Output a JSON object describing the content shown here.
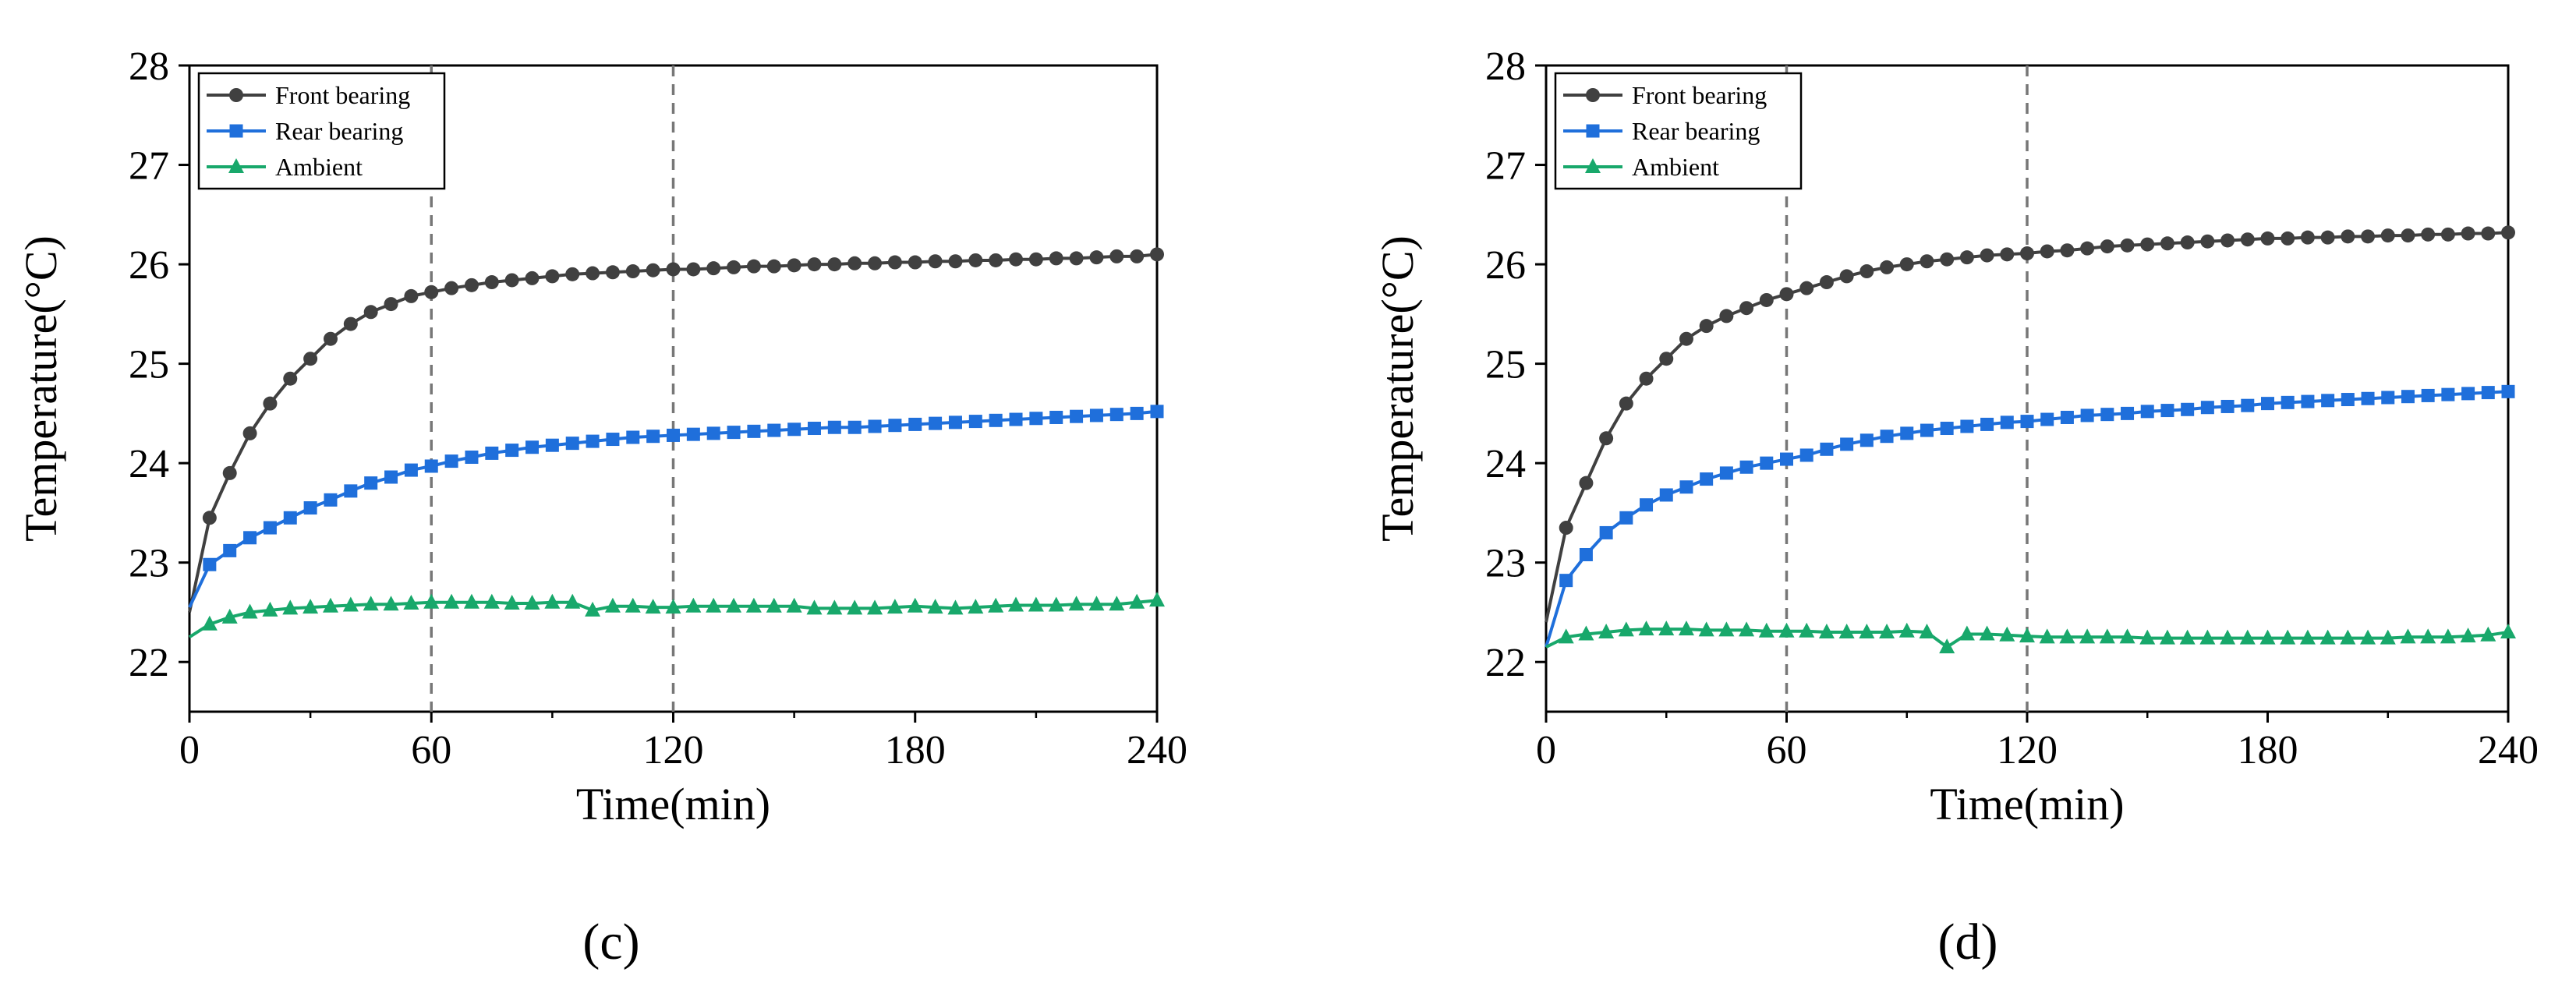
{
  "chart_data": [
    {
      "type": "line",
      "panel_label": "(c)",
      "xlabel": "Time(min)",
      "ylabel": "Temperature(°C)",
      "xlim": [
        0,
        240
      ],
      "ylim": [
        21.5,
        28
      ],
      "xticks": [
        0,
        60,
        120,
        180,
        240
      ],
      "yticks": [
        22,
        23,
        24,
        25,
        26,
        27,
        28
      ],
      "vlines": [
        60,
        120
      ],
      "legend_position": "top-left",
      "x": [
        0,
        5,
        10,
        15,
        20,
        25,
        30,
        35,
        40,
        45,
        50,
        55,
        60,
        65,
        70,
        75,
        80,
        85,
        90,
        95,
        100,
        105,
        110,
        115,
        120,
        125,
        130,
        135,
        140,
        145,
        150,
        155,
        160,
        165,
        170,
        175,
        180,
        185,
        190,
        195,
        200,
        205,
        210,
        215,
        220,
        225,
        230,
        235,
        240
      ],
      "series": [
        {
          "name": "Front bearing",
          "color": "#404040",
          "marker": "circle",
          "values": [
            22.5,
            23.45,
            23.9,
            24.3,
            24.6,
            24.85,
            25.05,
            25.25,
            25.4,
            25.52,
            25.6,
            25.68,
            25.72,
            25.76,
            25.79,
            25.82,
            25.84,
            25.86,
            25.88,
            25.9,
            25.91,
            25.92,
            25.93,
            25.94,
            25.95,
            25.95,
            25.96,
            25.97,
            25.98,
            25.98,
            25.99,
            26.0,
            26.0,
            26.01,
            26.01,
            26.02,
            26.02,
            26.03,
            26.03,
            26.04,
            26.04,
            26.05,
            26.05,
            26.06,
            26.06,
            26.07,
            26.08,
            26.08,
            26.1
          ]
        },
        {
          "name": "Rear bearing",
          "color": "#1f6fdb",
          "marker": "square",
          "values": [
            22.55,
            22.98,
            23.12,
            23.25,
            23.35,
            23.45,
            23.55,
            23.63,
            23.72,
            23.8,
            23.86,
            23.93,
            23.97,
            24.02,
            24.06,
            24.1,
            24.13,
            24.16,
            24.18,
            24.2,
            24.22,
            24.24,
            24.26,
            24.27,
            24.28,
            24.29,
            24.3,
            24.31,
            24.32,
            24.33,
            24.34,
            24.35,
            24.36,
            24.36,
            24.37,
            24.38,
            24.39,
            24.4,
            24.41,
            24.42,
            24.43,
            24.44,
            24.45,
            24.46,
            24.47,
            24.48,
            24.49,
            24.5,
            24.52
          ]
        },
        {
          "name": "Ambient",
          "color": "#18a86b",
          "marker": "triangle",
          "values": [
            22.25,
            22.38,
            22.45,
            22.5,
            22.52,
            22.54,
            22.55,
            22.56,
            22.57,
            22.58,
            22.58,
            22.59,
            22.6,
            22.6,
            22.6,
            22.6,
            22.59,
            22.59,
            22.6,
            22.6,
            22.52,
            22.56,
            22.56,
            22.55,
            22.55,
            22.56,
            22.56,
            22.56,
            22.56,
            22.56,
            22.56,
            22.54,
            22.54,
            22.54,
            22.54,
            22.55,
            22.56,
            22.55,
            22.54,
            22.55,
            22.56,
            22.57,
            22.57,
            22.57,
            22.58,
            22.58,
            22.58,
            22.6,
            22.62
          ]
        }
      ]
    },
    {
      "type": "line",
      "panel_label": "(d)",
      "xlabel": "Time(min)",
      "ylabel": "Temperature(°C)",
      "xlim": [
        0,
        240
      ],
      "ylim": [
        21.5,
        28
      ],
      "xticks": [
        0,
        60,
        120,
        180,
        240
      ],
      "yticks": [
        22,
        23,
        24,
        25,
        26,
        27,
        28
      ],
      "vlines": [
        60,
        120
      ],
      "legend_position": "top-left",
      "x": [
        0,
        5,
        10,
        15,
        20,
        25,
        30,
        35,
        40,
        45,
        50,
        55,
        60,
        65,
        70,
        75,
        80,
        85,
        90,
        95,
        100,
        105,
        110,
        115,
        120,
        125,
        130,
        135,
        140,
        145,
        150,
        155,
        160,
        165,
        170,
        175,
        180,
        185,
        190,
        195,
        200,
        205,
        210,
        215,
        220,
        225,
        230,
        235,
        240
      ],
      "series": [
        {
          "name": "Front bearing",
          "color": "#404040",
          "marker": "circle",
          "values": [
            22.4,
            23.35,
            23.8,
            24.25,
            24.6,
            24.85,
            25.05,
            25.25,
            25.38,
            25.48,
            25.56,
            25.64,
            25.7,
            25.76,
            25.82,
            25.88,
            25.93,
            25.97,
            26.0,
            26.03,
            26.05,
            26.07,
            26.09,
            26.1,
            26.11,
            26.13,
            26.14,
            26.16,
            26.18,
            26.19,
            26.2,
            26.21,
            26.22,
            26.23,
            26.24,
            26.25,
            26.26,
            26.26,
            26.27,
            26.27,
            26.28,
            26.28,
            26.29,
            26.29,
            26.3,
            26.3,
            26.31,
            26.31,
            26.32
          ]
        },
        {
          "name": "Rear bearing",
          "color": "#1f6fdb",
          "marker": "square",
          "values": [
            22.15,
            22.82,
            23.08,
            23.3,
            23.45,
            23.58,
            23.68,
            23.76,
            23.84,
            23.9,
            23.96,
            24.0,
            24.04,
            24.08,
            24.14,
            24.19,
            24.23,
            24.27,
            24.3,
            24.33,
            24.35,
            24.37,
            24.39,
            24.41,
            24.42,
            24.44,
            24.46,
            24.48,
            24.49,
            24.5,
            24.52,
            24.53,
            24.54,
            24.56,
            24.57,
            24.58,
            24.6,
            24.61,
            24.62,
            24.63,
            24.64,
            24.65,
            24.66,
            24.67,
            24.68,
            24.69,
            24.7,
            24.71,
            24.72
          ]
        },
        {
          "name": "Ambient",
          "color": "#18a86b",
          "marker": "triangle",
          "values": [
            22.15,
            22.25,
            22.28,
            22.3,
            22.32,
            22.33,
            22.33,
            22.33,
            22.32,
            22.32,
            22.32,
            22.31,
            22.31,
            22.31,
            22.3,
            22.3,
            22.3,
            22.3,
            22.31,
            22.3,
            22.15,
            22.28,
            22.28,
            22.27,
            22.26,
            22.25,
            22.25,
            22.25,
            22.25,
            22.25,
            22.24,
            22.24,
            22.24,
            22.24,
            22.24,
            22.24,
            22.24,
            22.24,
            22.24,
            22.24,
            22.24,
            22.24,
            22.24,
            22.25,
            22.25,
            22.25,
            22.26,
            22.27,
            22.3
          ]
        }
      ]
    }
  ]
}
